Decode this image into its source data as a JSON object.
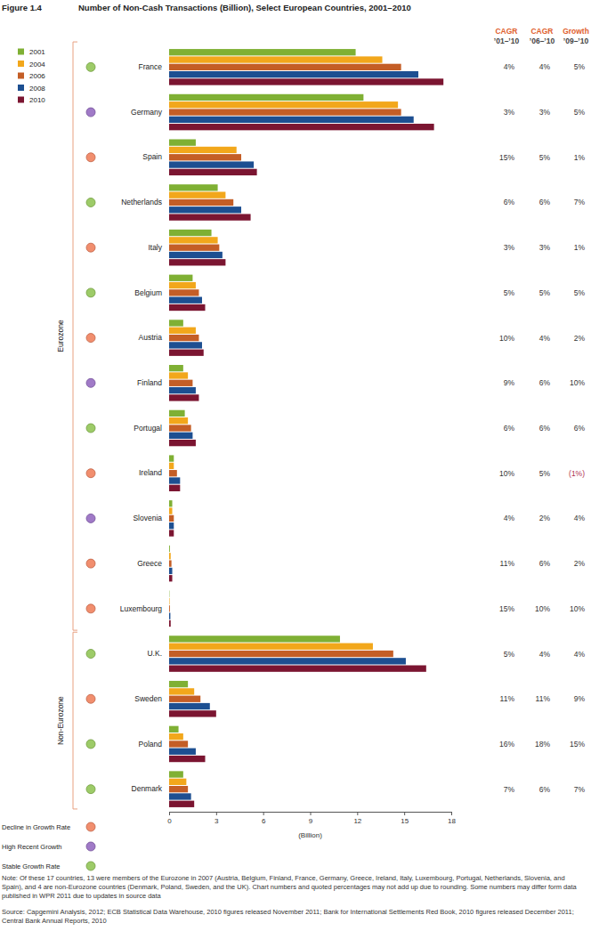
{
  "chart_data": {
    "type": "bar",
    "orientation": "horizontal",
    "figure_label": "Figure 1.4",
    "title": "Number of Non-Cash Transactions (Billion), Select European Countries, 2001–2010",
    "x_label": "(Billion)",
    "xlim": [
      0,
      18
    ],
    "xticks": [
      0,
      3,
      6,
      9,
      12,
      15,
      18
    ],
    "grid": false,
    "legend": "top-left",
    "categories": [
      "France",
      "Germany",
      "Spain",
      "Netherlands",
      "Italy",
      "Belgium",
      "Austria",
      "Finland",
      "Portugal",
      "Ireland",
      "Slovenia",
      "Greece",
      "Luxembourg",
      "U.K.",
      "Sweden",
      "Poland",
      "Denmark"
    ],
    "series": [
      {
        "name": "2001",
        "color": "#7fb034",
        "values": [
          11.9,
          12.4,
          1.7,
          3.1,
          2.7,
          1.5,
          0.9,
          0.9,
          1.0,
          0.3,
          0.2,
          0.05,
          0.02,
          10.9,
          1.2,
          0.6,
          0.9
        ]
      },
      {
        "name": "2004",
        "color": "#f2a71b",
        "values": [
          13.6,
          14.6,
          4.3,
          3.6,
          3.1,
          1.7,
          1.7,
          1.2,
          1.2,
          0.3,
          0.2,
          0.1,
          0.03,
          13.0,
          1.6,
          0.9,
          1.1
        ]
      },
      {
        "name": "2006",
        "color": "#c45e26",
        "values": [
          14.8,
          14.8,
          4.6,
          4.1,
          3.2,
          1.9,
          1.9,
          1.5,
          1.4,
          0.5,
          0.3,
          0.15,
          0.05,
          14.3,
          2.0,
          1.2,
          1.2
        ]
      },
      {
        "name": "2008",
        "color": "#1d4f91",
        "values": [
          15.9,
          15.6,
          5.4,
          4.6,
          3.4,
          2.1,
          2.1,
          1.7,
          1.5,
          0.7,
          0.3,
          0.2,
          0.08,
          15.1,
          2.6,
          1.7,
          1.4
        ]
      },
      {
        "name": "2010",
        "color": "#7b1531",
        "values": [
          17.5,
          16.9,
          5.6,
          5.2,
          3.6,
          2.3,
          2.2,
          1.9,
          1.7,
          0.7,
          0.3,
          0.2,
          0.1,
          16.4,
          3.0,
          2.3,
          1.6
        ]
      }
    ],
    "columns": [
      {
        "title": "CAGR",
        "subtitle": "’01–’10",
        "values": [
          4,
          3,
          15,
          6,
          3,
          5,
          10,
          9,
          6,
          10,
          4,
          11,
          15,
          5,
          11,
          16,
          7
        ],
        "value_labels": [
          "4%",
          "3%",
          "15%",
          "6%",
          "3%",
          "5%",
          "10%",
          "9%",
          "6%",
          "10%",
          "4%",
          "11%",
          "15%",
          "5%",
          "11%",
          "16%",
          "7%"
        ]
      },
      {
        "title": "CAGR",
        "subtitle": "’06–’10",
        "values": [
          4,
          3,
          5,
          6,
          3,
          5,
          4,
          6,
          6,
          5,
          2,
          6,
          10,
          4,
          11,
          18,
          6
        ],
        "value_labels": [
          "4%",
          "3%",
          "5%",
          "6%",
          "3%",
          "5%",
          "4%",
          "6%",
          "6%",
          "5%",
          "2%",
          "6%",
          "10%",
          "4%",
          "11%",
          "18%",
          "6%"
        ]
      },
      {
        "title": "Growth",
        "subtitle": "’09–’10",
        "values": [
          5,
          5,
          1,
          7,
          1,
          5,
          2,
          10,
          6,
          -1,
          4,
          2,
          10,
          4,
          9,
          15,
          7
        ],
        "value_labels": [
          "5%",
          "5%",
          "1%",
          "7%",
          "1%",
          "5%",
          "2%",
          "10%",
          "6%",
          "(1%)",
          "4%",
          "2%",
          "10%",
          "4%",
          "9%",
          "15%",
          "7%"
        ]
      }
    ],
    "groups": [
      {
        "label": "Eurozone",
        "size": 13
      },
      {
        "label": "Non-Eurozone",
        "size": 4
      }
    ],
    "status_legend": [
      {
        "label": "Decline in Growth Rate",
        "color": "#ee7a55"
      },
      {
        "label": "High Recent Growth",
        "color": "#8f63bd"
      },
      {
        "label": "Stable Growth Rate",
        "color": "#8cc24e"
      }
    ],
    "status": [
      "Stable Growth Rate",
      "High Recent Growth",
      "Decline in Growth Rate",
      "Stable Growth Rate",
      "Decline in Growth Rate",
      "Stable Growth Rate",
      "Decline in Growth Rate",
      "High Recent Growth",
      "Stable Growth Rate",
      "Decline in Growth Rate",
      "High Recent Growth",
      "Decline in Growth Rate",
      "Decline in Growth Rate",
      "Stable Growth Rate",
      "Decline in Growth Rate",
      "Stable Growth Rate",
      "Stable Growth Rate"
    ],
    "note": "Note: Of these 17 countries, 13 were members of the Eurozone in 2007 (Austria, Belgium, Finland, France, Germany, Greece, Ireland, Italy, Luxembourg, Portugal, Netherlands, Slovenia, and Spain), and 4 are non-Eurozone countries (Denmark, Poland, Sweden, and the UK). Chart numbers and quoted percentages may not add up due to rounding. Some numbers may differ form data published in WPR 2011 due to updates in source data",
    "source": "Source: Capgemini Analysis, 2012; ECB Statistical Data Warehouse, 2010 figures released November 2011; Bank for International Settlements Red Book, 2010 figures released December 2011; Central Bank Annual Reports, 2010"
  }
}
